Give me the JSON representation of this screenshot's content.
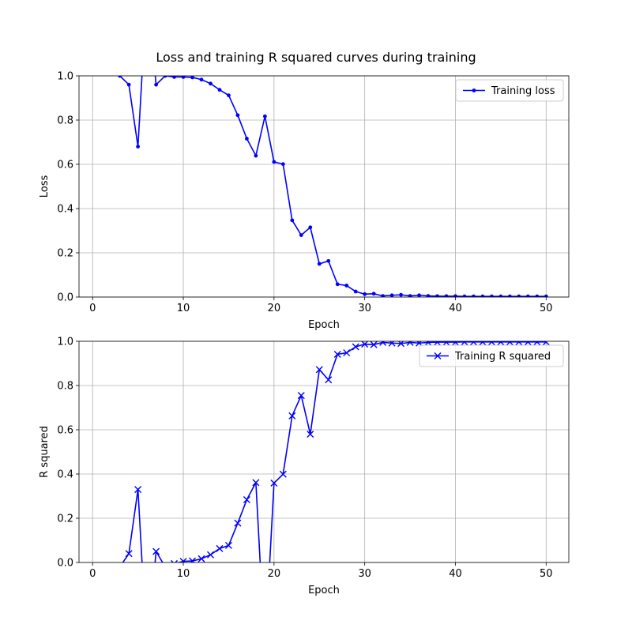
{
  "figure": {
    "title": "Loss and training R squared curves during training"
  },
  "chart_data": [
    {
      "type": "line",
      "title": "",
      "xlabel": "Epoch",
      "ylabel": "Loss",
      "xlim": [
        -1.5,
        52.5
      ],
      "ylim": [
        0,
        1.0
      ],
      "xticks": [
        0,
        10,
        20,
        30,
        40,
        50
      ],
      "yticks": [
        0.0,
        0.2,
        0.4,
        0.6,
        0.8,
        1.0
      ],
      "grid": true,
      "legend_position": "upper right",
      "series": [
        {
          "name": "Training loss",
          "color": "#0000ff",
          "marker": "dot",
          "x": [
            1,
            2,
            3,
            4,
            5,
            6,
            7,
            8,
            9,
            10,
            11,
            12,
            13,
            14,
            15,
            16,
            17,
            18,
            19,
            20,
            21,
            22,
            23,
            24,
            25,
            26,
            27,
            28,
            29,
            30,
            31,
            32,
            33,
            34,
            35,
            36,
            37,
            38,
            39,
            40,
            41,
            42,
            43,
            44,
            45,
            46,
            47,
            48,
            49,
            50
          ],
          "values": [
            1.1,
            1.05,
            1.0,
            0.96,
            0.68,
            1.4,
            0.96,
            1.0,
            0.995,
            0.995,
            0.993,
            0.983,
            0.965,
            0.937,
            0.912,
            0.822,
            0.716,
            0.639,
            0.817,
            0.611,
            0.601,
            0.347,
            0.28,
            0.315,
            0.15,
            0.163,
            0.058,
            0.052,
            0.025,
            0.013,
            0.015,
            0.005,
            0.008,
            0.01,
            0.005,
            0.008,
            0.005,
            0.004,
            0.004,
            0.004,
            0.003,
            0.003,
            0.003,
            0.003,
            0.003,
            0.003,
            0.003,
            0.003,
            0.003,
            0.003
          ]
        }
      ]
    },
    {
      "type": "line",
      "title": "",
      "xlabel": "Epoch",
      "ylabel": "R squared",
      "xlim": [
        -1.5,
        52.5
      ],
      "ylim": [
        0,
        1.0
      ],
      "xticks": [
        0,
        10,
        20,
        30,
        40,
        50
      ],
      "yticks": [
        0.0,
        0.2,
        0.4,
        0.6,
        0.8,
        1.0
      ],
      "grid": true,
      "legend_position": "upper right",
      "series": [
        {
          "name": "Training R squared",
          "color": "#0000ff",
          "marker": "x",
          "x": [
            1,
            2,
            3,
            4,
            5,
            6,
            7,
            8,
            9,
            10,
            11,
            12,
            13,
            14,
            15,
            16,
            17,
            18,
            19,
            20,
            21,
            22,
            23,
            24,
            25,
            26,
            27,
            28,
            29,
            30,
            31,
            32,
            33,
            34,
            35,
            36,
            37,
            38,
            39,
            40,
            41,
            42,
            43,
            44,
            45,
            46,
            47,
            48,
            49,
            50
          ],
          "values": [
            -0.1,
            -0.05,
            -0.02,
            0.04,
            0.33,
            -0.4,
            0.05,
            -0.02,
            -0.005,
            0.005,
            0.007,
            0.017,
            0.035,
            0.063,
            0.077,
            0.178,
            0.284,
            0.361,
            -0.4,
            0.359,
            0.399,
            0.663,
            0.755,
            0.58,
            0.872,
            0.826,
            0.941,
            0.948,
            0.975,
            0.987,
            0.985,
            0.995,
            0.992,
            0.99,
            0.995,
            0.992,
            0.995,
            0.996,
            0.996,
            0.996,
            0.997,
            0.997,
            0.997,
            0.997,
            0.997,
            0.997,
            0.997,
            0.997,
            0.997,
            0.997
          ]
        }
      ]
    }
  ]
}
